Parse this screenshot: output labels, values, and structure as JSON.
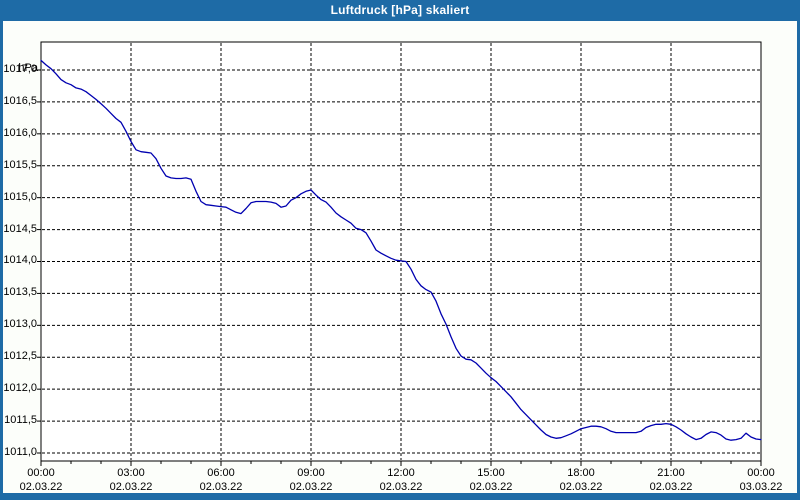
{
  "window": {
    "title": "Luftdruck [hPa] skaliert",
    "titlebar_color": "#1e6ba6",
    "frame_color": "#1e6ba6",
    "background_color": "#fcfefa"
  },
  "chart_data": {
    "type": "line",
    "title": "Luftdruck [hPa] skaliert",
    "unit_label": "hPa",
    "xlabel": "",
    "ylabel": "hPa",
    "grid": "dashed-black",
    "legend": "none",
    "line_color": "#0000b0",
    "plot_background": "#ffffff",
    "ylim": [
      1010.9,
      1017.45
    ],
    "xlim_hours": [
      0,
      24
    ],
    "y_ticks": [
      {
        "value": 1017.0,
        "label": "1017,0"
      },
      {
        "value": 1016.5,
        "label": "1016,5"
      },
      {
        "value": 1016.0,
        "label": "1016,0"
      },
      {
        "value": 1015.5,
        "label": "1015,5"
      },
      {
        "value": 1015.0,
        "label": "1015,0"
      },
      {
        "value": 1014.5,
        "label": "1014,5"
      },
      {
        "value": 1014.0,
        "label": "1014,0"
      },
      {
        "value": 1013.5,
        "label": "1013,5"
      },
      {
        "value": 1013.0,
        "label": "1013,0"
      },
      {
        "value": 1012.5,
        "label": "1012,5"
      },
      {
        "value": 1012.0,
        "label": "1012,0"
      },
      {
        "value": 1011.5,
        "label": "1011,5"
      },
      {
        "value": 1011.0,
        "label": "1011,0"
      }
    ],
    "x_ticks": [
      {
        "hour": 0,
        "time": "00:00",
        "date": "02.03.22"
      },
      {
        "hour": 3,
        "time": "03:00",
        "date": "02.03.22"
      },
      {
        "hour": 6,
        "time": "06:00",
        "date": "02.03.22"
      },
      {
        "hour": 9,
        "time": "09:00",
        "date": "02.03.22"
      },
      {
        "hour": 12,
        "time": "12:00",
        "date": "02.03.22"
      },
      {
        "hour": 15,
        "time": "15:00",
        "date": "02.03.22"
      },
      {
        "hour": 18,
        "time": "18:00",
        "date": "02.03.22"
      },
      {
        "hour": 21,
        "time": "21:00",
        "date": "02.03.22"
      },
      {
        "hour": 24,
        "time": "00:00",
        "date": "03.03.22"
      }
    ],
    "series": [
      {
        "name": "Luftdruck",
        "points_minutes_hpa": [
          [
            0,
            1017.15
          ],
          [
            10,
            1017.08
          ],
          [
            20,
            1017.02
          ],
          [
            30,
            1016.94
          ],
          [
            40,
            1016.85
          ],
          [
            50,
            1016.8
          ],
          [
            60,
            1016.77
          ],
          [
            70,
            1016.72
          ],
          [
            80,
            1016.7
          ],
          [
            90,
            1016.66
          ],
          [
            100,
            1016.6
          ],
          [
            110,
            1016.54
          ],
          [
            120,
            1016.47
          ],
          [
            130,
            1016.4
          ],
          [
            140,
            1016.32
          ],
          [
            150,
            1016.24
          ],
          [
            160,
            1016.18
          ],
          [
            170,
            1016.04
          ],
          [
            180,
            1015.88
          ],
          [
            190,
            1015.75
          ],
          [
            200,
            1015.72
          ],
          [
            210,
            1015.71
          ],
          [
            220,
            1015.7
          ],
          [
            230,
            1015.61
          ],
          [
            240,
            1015.46
          ],
          [
            250,
            1015.34
          ],
          [
            260,
            1015.31
          ],
          [
            270,
            1015.3
          ],
          [
            280,
            1015.3
          ],
          [
            290,
            1015.31
          ],
          [
            300,
            1015.29
          ],
          [
            310,
            1015.1
          ],
          [
            320,
            1014.94
          ],
          [
            330,
            1014.89
          ],
          [
            340,
            1014.88
          ],
          [
            350,
            1014.87
          ],
          [
            360,
            1014.86
          ],
          [
            370,
            1014.85
          ],
          [
            380,
            1014.81
          ],
          [
            390,
            1014.77
          ],
          [
            400,
            1014.75
          ],
          [
            410,
            1014.83
          ],
          [
            420,
            1014.92
          ],
          [
            430,
            1014.94
          ],
          [
            440,
            1014.94
          ],
          [
            450,
            1014.94
          ],
          [
            460,
            1014.93
          ],
          [
            470,
            1014.91
          ],
          [
            480,
            1014.85
          ],
          [
            490,
            1014.87
          ],
          [
            500,
            1014.96
          ],
          [
            510,
            1015.0
          ],
          [
            520,
            1015.06
          ],
          [
            530,
            1015.1
          ],
          [
            540,
            1015.12
          ],
          [
            550,
            1015.04
          ],
          [
            560,
            1014.97
          ],
          [
            570,
            1014.93
          ],
          [
            580,
            1014.85
          ],
          [
            590,
            1014.76
          ],
          [
            600,
            1014.7
          ],
          [
            610,
            1014.65
          ],
          [
            620,
            1014.6
          ],
          [
            630,
            1014.52
          ],
          [
            640,
            1014.5
          ],
          [
            650,
            1014.45
          ],
          [
            660,
            1014.32
          ],
          [
            670,
            1014.18
          ],
          [
            680,
            1014.13
          ],
          [
            690,
            1014.09
          ],
          [
            700,
            1014.05
          ],
          [
            710,
            1014.02
          ],
          [
            720,
            1014.01
          ],
          [
            730,
            1014.0
          ],
          [
            740,
            1013.88
          ],
          [
            750,
            1013.72
          ],
          [
            760,
            1013.62
          ],
          [
            770,
            1013.56
          ],
          [
            780,
            1013.52
          ],
          [
            790,
            1013.38
          ],
          [
            800,
            1013.18
          ],
          [
            810,
            1013.02
          ],
          [
            820,
            1012.82
          ],
          [
            830,
            1012.64
          ],
          [
            840,
            1012.52
          ],
          [
            850,
            1012.47
          ],
          [
            860,
            1012.46
          ],
          [
            870,
            1012.41
          ],
          [
            880,
            1012.33
          ],
          [
            890,
            1012.25
          ],
          [
            900,
            1012.18
          ],
          [
            910,
            1012.12
          ],
          [
            920,
            1012.04
          ],
          [
            930,
            1011.96
          ],
          [
            940,
            1011.88
          ],
          [
            950,
            1011.78
          ],
          [
            960,
            1011.68
          ],
          [
            970,
            1011.6
          ],
          [
            980,
            1011.52
          ],
          [
            990,
            1011.44
          ],
          [
            1000,
            1011.36
          ],
          [
            1010,
            1011.29
          ],
          [
            1020,
            1011.25
          ],
          [
            1030,
            1011.23
          ],
          [
            1040,
            1011.24
          ],
          [
            1050,
            1011.27
          ],
          [
            1060,
            1011.3
          ],
          [
            1070,
            1011.34
          ],
          [
            1080,
            1011.38
          ],
          [
            1090,
            1011.4
          ],
          [
            1100,
            1011.42
          ],
          [
            1110,
            1011.42
          ],
          [
            1120,
            1011.41
          ],
          [
            1130,
            1011.38
          ],
          [
            1140,
            1011.34
          ],
          [
            1150,
            1011.32
          ],
          [
            1160,
            1011.32
          ],
          [
            1170,
            1011.32
          ],
          [
            1180,
            1011.32
          ],
          [
            1190,
            1011.32
          ],
          [
            1200,
            1011.34
          ],
          [
            1210,
            1011.4
          ],
          [
            1220,
            1011.43
          ],
          [
            1230,
            1011.45
          ],
          [
            1240,
            1011.45
          ],
          [
            1250,
            1011.46
          ],
          [
            1260,
            1011.45
          ],
          [
            1270,
            1011.41
          ],
          [
            1280,
            1011.36
          ],
          [
            1290,
            1011.3
          ],
          [
            1300,
            1011.25
          ],
          [
            1310,
            1011.21
          ],
          [
            1320,
            1011.23
          ],
          [
            1330,
            1011.29
          ],
          [
            1340,
            1011.33
          ],
          [
            1350,
            1011.32
          ],
          [
            1360,
            1011.28
          ],
          [
            1370,
            1011.22
          ],
          [
            1380,
            1011.2
          ],
          [
            1390,
            1011.21
          ],
          [
            1400,
            1011.23
          ],
          [
            1410,
            1011.31
          ],
          [
            1420,
            1011.25
          ],
          [
            1430,
            1011.22
          ],
          [
            1440,
            1011.21
          ]
        ]
      }
    ]
  }
}
